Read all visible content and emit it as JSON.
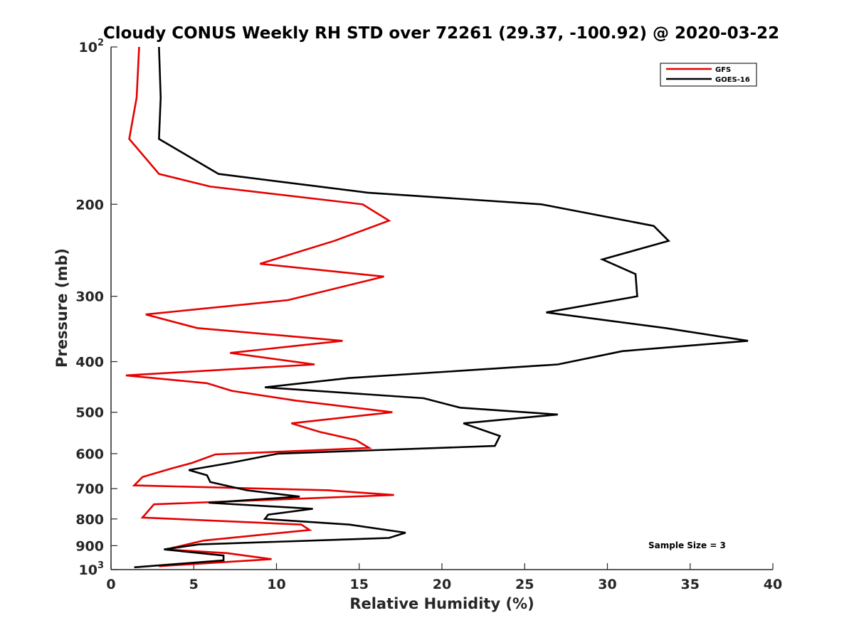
{
  "chart_data": {
    "type": "line",
    "title": "Cloudy CONUS Weekly RH STD over 72261 (29.37, -100.92) @ 2020-03-22",
    "xlabel": "Relative Humidity (%)",
    "ylabel": "Pressure (mb)",
    "xlim": [
      0,
      40
    ],
    "ylim": [
      100,
      1000
    ],
    "y_scale": "log",
    "y_reversed": true,
    "x_ticks": [
      0,
      5,
      10,
      15,
      20,
      25,
      30,
      35,
      40
    ],
    "x_tick_labels": [
      "0",
      "5",
      "10",
      "15",
      "20",
      "25",
      "30",
      "35",
      "40"
    ],
    "y_ticks": [
      100,
      200,
      300,
      400,
      500,
      600,
      700,
      800,
      900,
      1000
    ],
    "y_tick_labels": [
      {
        "base": "10",
        "exp": "2"
      },
      {
        "base": "200",
        "exp": ""
      },
      {
        "base": "300",
        "exp": ""
      },
      {
        "base": "400",
        "exp": ""
      },
      {
        "base": "500",
        "exp": ""
      },
      {
        "base": "600",
        "exp": ""
      },
      {
        "base": "700",
        "exp": ""
      },
      {
        "base": "800",
        "exp": ""
      },
      {
        "base": "900",
        "exp": ""
      },
      {
        "base": "10",
        "exp": "3"
      }
    ],
    "legend_position": "top-right",
    "annotation": "Sample Size = 3",
    "series": [
      {
        "name": "GFS",
        "color": "#e60000",
        "points": [
          [
            1.7,
            100
          ],
          [
            1.55,
            125
          ],
          [
            1.1,
            150
          ],
          [
            2.9,
            175
          ],
          [
            6.0,
            185
          ],
          [
            15.2,
            200
          ],
          [
            16.8,
            215
          ],
          [
            13.5,
            235
          ],
          [
            9.0,
            260
          ],
          [
            16.5,
            275
          ],
          [
            10.7,
            305
          ],
          [
            2.1,
            325
          ],
          [
            5.2,
            345
          ],
          [
            14.0,
            365
          ],
          [
            7.2,
            385
          ],
          [
            12.3,
            405
          ],
          [
            0.9,
            425
          ],
          [
            5.8,
            440
          ],
          [
            7.3,
            455
          ],
          [
            11.2,
            475
          ],
          [
            17.0,
            500
          ],
          [
            10.9,
            525
          ],
          [
            12.6,
            545
          ],
          [
            14.8,
            565
          ],
          [
            15.6,
            585
          ],
          [
            6.3,
            602
          ],
          [
            4.9,
            625
          ],
          [
            3.7,
            640
          ],
          [
            1.9,
            665
          ],
          [
            1.4,
            690
          ],
          [
            13.1,
            705
          ],
          [
            17.1,
            720
          ],
          [
            2.6,
            750
          ],
          [
            1.9,
            795
          ],
          [
            11.5,
            820
          ],
          [
            12.0,
            840
          ],
          [
            5.6,
            880
          ],
          [
            3.3,
            915
          ],
          [
            7.0,
            930
          ],
          [
            9.7,
            955
          ],
          [
            2.9,
            985
          ]
        ]
      },
      {
        "name": "GOES-16",
        "color": "#000000",
        "points": [
          [
            2.9,
            100
          ],
          [
            3.0,
            125
          ],
          [
            2.9,
            150
          ],
          [
            6.5,
            175
          ],
          [
            15.5,
            190
          ],
          [
            26.0,
            200
          ],
          [
            32.8,
            220
          ],
          [
            33.7,
            235
          ],
          [
            29.7,
            255
          ],
          [
            31.7,
            272
          ],
          [
            31.8,
            300
          ],
          [
            26.3,
            322
          ],
          [
            33.5,
            345
          ],
          [
            38.5,
            365
          ],
          [
            30.9,
            382
          ],
          [
            27.0,
            405
          ],
          [
            14.4,
            430
          ],
          [
            9.3,
            448
          ],
          [
            18.9,
            470
          ],
          [
            21.1,
            490
          ],
          [
            27.0,
            505
          ],
          [
            21.3,
            525
          ],
          [
            23.5,
            555
          ],
          [
            23.2,
            580
          ],
          [
            10.1,
            600
          ],
          [
            7.2,
            625
          ],
          [
            4.7,
            645
          ],
          [
            5.8,
            660
          ],
          [
            6.0,
            680
          ],
          [
            8.2,
            705
          ],
          [
            11.4,
            725
          ],
          [
            5.9,
            745
          ],
          [
            12.2,
            765
          ],
          [
            9.5,
            785
          ],
          [
            9.3,
            800
          ],
          [
            14.4,
            820
          ],
          [
            17.8,
            850
          ],
          [
            16.8,
            870
          ],
          [
            5.3,
            895
          ],
          [
            3.2,
            915
          ],
          [
            6.8,
            940
          ],
          [
            6.8,
            960
          ],
          [
            1.4,
            990
          ]
        ]
      }
    ]
  }
}
